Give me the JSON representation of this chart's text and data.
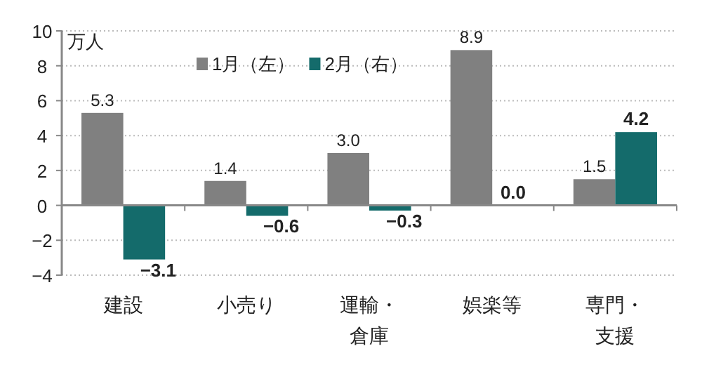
{
  "chart_data": {
    "type": "bar",
    "ylabel": "万人",
    "categories": [
      "建設",
      "小売り",
      "運輸・倉庫",
      "娯楽等",
      "専門・支援"
    ],
    "series": [
      {
        "name": "1月（左）",
        "color": "#808080",
        "values": [
          5.3,
          1.4,
          3.0,
          8.9,
          1.5
        ],
        "value_labels": [
          "5.3",
          "1.4",
          "3.0",
          "8.9",
          "1.5"
        ]
      },
      {
        "name": "2月（右）",
        "color": "#146b6b",
        "values": [
          -3.1,
          -0.6,
          -0.3,
          0.0,
          4.2
        ],
        "value_labels": [
          "−3.1",
          "−0.6",
          "−0.3",
          "0.0",
          "4.2"
        ]
      }
    ],
    "ylim": [
      -4,
      10
    ],
    "yticks": [
      {
        "value": -4,
        "label": "−4"
      },
      {
        "value": -2,
        "label": "−2"
      },
      0,
      2,
      4,
      6,
      8,
      10
    ],
    "grid": "y",
    "legend": "top"
  }
}
